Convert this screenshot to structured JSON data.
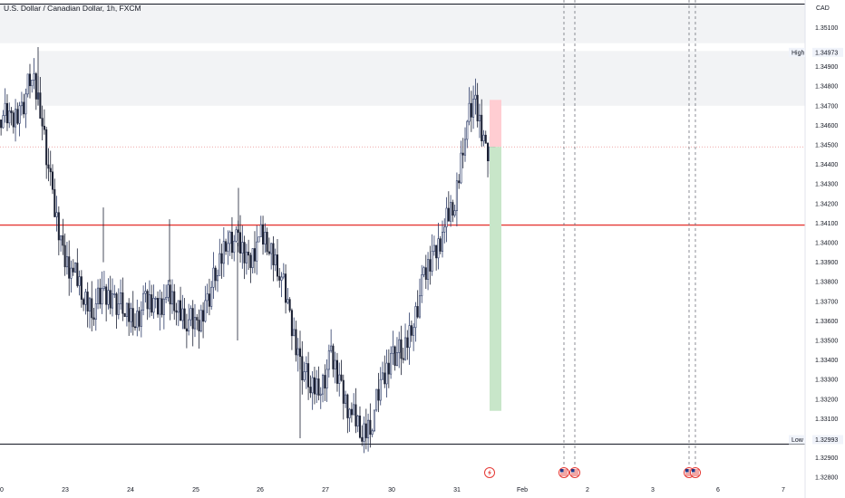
{
  "header": {
    "title": "U.S. Dollar / Canadian Dollar, 1h, FXCM",
    "currency": "CAD"
  },
  "markers": {
    "high_label": "High",
    "high_value": "1.34973",
    "low_label": "Low",
    "low_value": "1.32993"
  },
  "colors": {
    "up": "#2b3a67",
    "down": "#1b2033",
    "resistance_line": "#e53935",
    "profit_zone": "#c8e6c9",
    "loss_zone": "#ffcdd2",
    "supply_zone": "#f2f3f5"
  },
  "chart_data": {
    "type": "candlestick",
    "y_axis": {
      "ticks": [
        "1.35100",
        "1.34900",
        "1.34800",
        "1.34700",
        "1.34600",
        "1.34500",
        "1.34400",
        "1.34300",
        "1.34200",
        "1.34100",
        "1.34000",
        "1.33900",
        "1.33800",
        "1.33700",
        "1.33600",
        "1.33500",
        "1.33400",
        "1.33300",
        "1.33200",
        "1.33100",
        "1.32900",
        "1.32800"
      ],
      "range": [
        1.3277,
        1.3522
      ]
    },
    "x_axis": {
      "ticks": [
        "0",
        "23",
        "24",
        "25",
        "26",
        "27",
        "30",
        "31",
        "Feb",
        "2",
        "3",
        "6",
        "7"
      ]
    },
    "levels": {
      "resistance": 1.3409,
      "top_line": 1.3522,
      "bottom_line": 1.3297,
      "current_price_dotted": 1.3449
    },
    "zones": {
      "upper_supply": [
        1.3502,
        1.3522
      ],
      "lower_supply": [
        1.347,
        1.3498
      ]
    },
    "position": {
      "entry": 1.3449,
      "stop": 1.3473,
      "target": 1.3314
    },
    "candle_waypoints": [
      [
        1.3463,
        1.3466
      ],
      [
        1.3468,
        1.3461
      ],
      [
        1.3472,
        1.347
      ],
      [
        1.3475,
        1.3485
      ],
      [
        1.347,
        1.3465
      ],
      [
        1.344,
        1.342
      ],
      [
        1.34,
        1.3395
      ],
      [
        1.339,
        1.3385
      ],
      [
        1.338,
        1.3372
      ],
      [
        1.338,
        1.3368
      ],
      [
        1.3378,
        1.3372
      ],
      [
        1.3368,
        1.3372
      ],
      [
        1.336,
        1.3364
      ],
      [
        1.3358,
        1.3362
      ],
      [
        1.3365,
        1.3368
      ],
      [
        1.3372,
        1.3368
      ],
      [
        1.3388,
        1.3372
      ],
      [
        1.3372,
        1.3368
      ],
      [
        1.3366,
        1.3362
      ],
      [
        1.336,
        1.3355
      ],
      [
        1.3368,
        1.3372
      ],
      [
        1.338,
        1.3385
      ],
      [
        1.3398,
        1.3405
      ],
      [
        1.3415,
        1.3398
      ],
      [
        1.3395,
        1.339
      ],
      [
        1.34,
        1.3403
      ],
      [
        1.3405,
        1.3398
      ],
      [
        1.3395,
        1.3388
      ],
      [
        1.3372,
        1.336
      ],
      [
        1.335,
        1.334
      ],
      [
        1.333,
        1.3325
      ],
      [
        1.3322,
        1.3328
      ],
      [
        1.3335,
        1.334
      ],
      [
        1.3332,
        1.3326
      ],
      [
        1.3318,
        1.3312
      ],
      [
        1.3308,
        1.3302
      ],
      [
        1.3305,
        1.3311
      ],
      [
        1.332,
        1.3328
      ],
      [
        1.3338,
        1.3345
      ],
      [
        1.3352,
        1.3342
      ],
      [
        1.3355,
        1.3362
      ],
      [
        1.337,
        1.338
      ],
      [
        1.3389,
        1.3395
      ],
      [
        1.34,
        1.3408
      ],
      [
        1.3412,
        1.342
      ],
      [
        1.3445,
        1.346
      ],
      [
        1.3468,
        1.347
      ],
      [
        1.3455,
        1.3449
      ]
    ],
    "event_icons": [
      "lightning-icon",
      "us-flag-icon",
      "us-flag-icon",
      "us-flag-icon",
      "us-flag-icon"
    ]
  }
}
